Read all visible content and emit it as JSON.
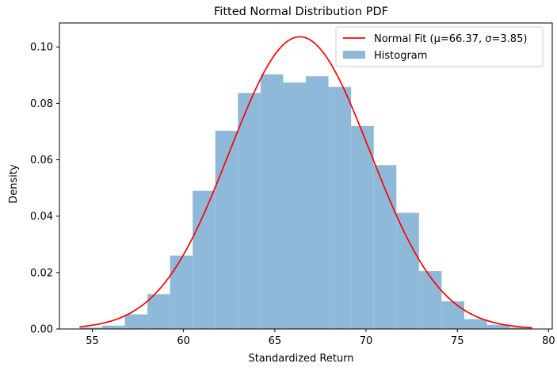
{
  "chart_data": {
    "type": "bar",
    "title": "Fitted Normal Distribution PDF",
    "xlabel": "Standardized Return",
    "ylabel": "Density",
    "xlim": [
      53.2,
      80.2
    ],
    "ylim": [
      0,
      0.1085
    ],
    "x_ticks": [
      55,
      60,
      65,
      70,
      75,
      80
    ],
    "y_ticks": [
      0.0,
      0.02,
      0.04,
      0.06,
      0.08,
      0.1
    ],
    "x_tick_labels": [
      "55",
      "60",
      "65",
      "70",
      "75",
      "80"
    ],
    "y_tick_labels": [
      "0.00",
      "0.02",
      "0.04",
      "0.06",
      "0.08",
      "0.10"
    ],
    "grid": false,
    "legend_position": "top-right",
    "series": [
      {
        "name": "Histogram",
        "kind": "histogram",
        "color": "#8fb9d9",
        "bin_edges": [
          54.3,
          55.54,
          56.78,
          58.02,
          59.26,
          60.5,
          61.74,
          62.98,
          64.22,
          65.46,
          66.7,
          67.94,
          69.18,
          70.42,
          71.66,
          72.9,
          74.14,
          75.38,
          76.62,
          77.86,
          79.1
        ],
        "values": [
          0.0005,
          0.0012,
          0.0052,
          0.0123,
          0.026,
          0.049,
          0.0703,
          0.0837,
          0.0903,
          0.0874,
          0.0896,
          0.0858,
          0.072,
          0.0581,
          0.0412,
          0.0205,
          0.0098,
          0.0035,
          0.0015,
          0.0005
        ]
      },
      {
        "name": "Normal Fit (μ=66.37, σ=3.85)",
        "kind": "pdf-line",
        "color": "#ff0000",
        "mu": 66.37,
        "sigma": 3.85,
        "x_range": [
          54.3,
          79.1
        ]
      }
    ]
  }
}
